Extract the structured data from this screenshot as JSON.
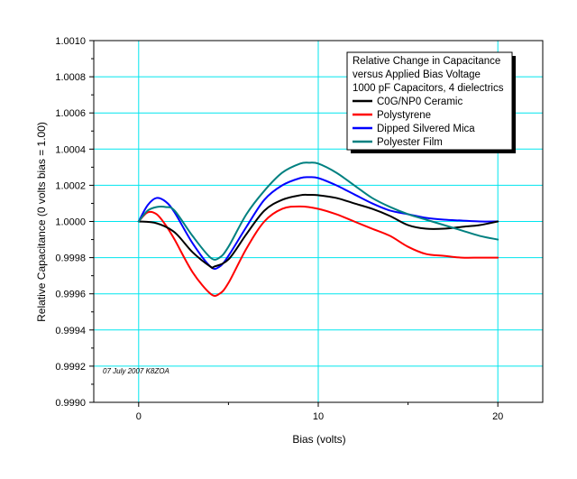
{
  "chart_data": {
    "type": "line",
    "xlabel": "Bias (volts)",
    "ylabel": "Relative Capacitance (0 volts bias = 1.00)",
    "xlim": [
      -2.5,
      22.5
    ],
    "ylim": [
      0.999,
      1.001
    ],
    "x_ticks": [
      0,
      10,
      20
    ],
    "x_tick_labels": [
      "0",
      "10",
      "20"
    ],
    "y_ticks": [
      0.999,
      0.9992,
      0.9994,
      0.9996,
      0.9998,
      1.0,
      1.0002,
      1.0004,
      1.0006,
      1.0008,
      1.001
    ],
    "y_tick_labels": [
      "0.9990",
      "0.9992",
      "0.9994",
      "0.9996",
      "0.9998",
      "1.0000",
      "1.0002",
      "1.0004",
      "1.0006",
      "1.0008",
      "1.0010"
    ],
    "grid": true,
    "legend_title_lines": [
      "Relative Change in Capacitance",
      "versus Applied Bias Voltage",
      "1000 pF Capacitors, 4 dielectrics"
    ],
    "legend_position": "top-right",
    "annotation": "07 July 2007 K8ZOA",
    "series": [
      {
        "name": "C0G/NP0 Ceramic",
        "color": "#000000",
        "x": [
          0,
          1,
          2,
          3,
          4,
          4.2,
          5,
          6,
          7,
          8,
          9,
          9.5,
          10,
          11,
          12,
          13,
          14,
          15,
          16,
          17,
          18,
          19,
          20
        ],
        "y": [
          1.0,
          0.99999,
          0.99994,
          0.99983,
          0.99975,
          0.99975,
          0.99979,
          0.99993,
          1.00006,
          1.00012,
          1.000145,
          1.000147,
          1.000145,
          1.00013,
          1.0001,
          1.00007,
          1.00003,
          0.99998,
          0.99996,
          0.99996,
          0.99997,
          0.99998,
          1.0
        ]
      },
      {
        "name": "Polystyrene",
        "color": "#ff0000",
        "x": [
          0,
          0.5,
          1,
          1.5,
          2,
          3,
          4,
          4.5,
          5,
          6,
          7,
          8,
          9,
          10,
          11,
          12,
          13,
          14,
          15,
          16,
          17,
          18,
          19,
          20
        ],
        "y": [
          1.0,
          1.00005,
          1.00004,
          0.99998,
          0.9999,
          0.99972,
          0.9996,
          0.9996,
          0.99966,
          0.99985,
          1.0,
          1.00007,
          1.000083,
          1.00007,
          1.00004,
          1.0,
          0.99996,
          0.99992,
          0.99986,
          0.99982,
          0.99981,
          0.9998,
          0.9998,
          0.9998
        ]
      },
      {
        "name": "Dipped Silvered Mica",
        "color": "#0000ff",
        "x": [
          0,
          0.5,
          1,
          1.5,
          2,
          3,
          4,
          4.5,
          5,
          6,
          7,
          8,
          9,
          9.5,
          10,
          11,
          12,
          13,
          14,
          15,
          16,
          17,
          18,
          19,
          20
        ],
        "y": [
          1.0,
          1.00009,
          1.00013,
          1.00011,
          1.00005,
          0.99988,
          0.99975,
          0.99975,
          0.99981,
          0.99997,
          1.00012,
          1.0002,
          1.00024,
          1.000245,
          1.00024,
          1.0002,
          1.00015,
          1.0001,
          1.00006,
          1.00004,
          1.00002,
          1.00001,
          1.000005,
          1.0,
          1.0
        ]
      },
      {
        "name": "Polyester Film",
        "color": "#008080",
        "x": [
          0,
          0.5,
          1,
          1.5,
          2,
          3,
          4,
          4.5,
          5,
          6,
          7,
          8,
          9,
          9.5,
          10,
          11,
          12,
          13,
          14,
          15,
          16,
          17,
          18,
          19,
          20
        ],
        "y": [
          1.0,
          1.00006,
          1.00008,
          1.00008,
          1.00006,
          0.99992,
          0.9998,
          0.9998,
          0.99986,
          1.00004,
          1.00017,
          1.00027,
          1.00032,
          1.000325,
          1.00032,
          1.00027,
          1.0002,
          1.00013,
          1.00008,
          1.00004,
          1.00001,
          0.99998,
          0.99995,
          0.99992,
          0.9999
        ]
      }
    ]
  }
}
